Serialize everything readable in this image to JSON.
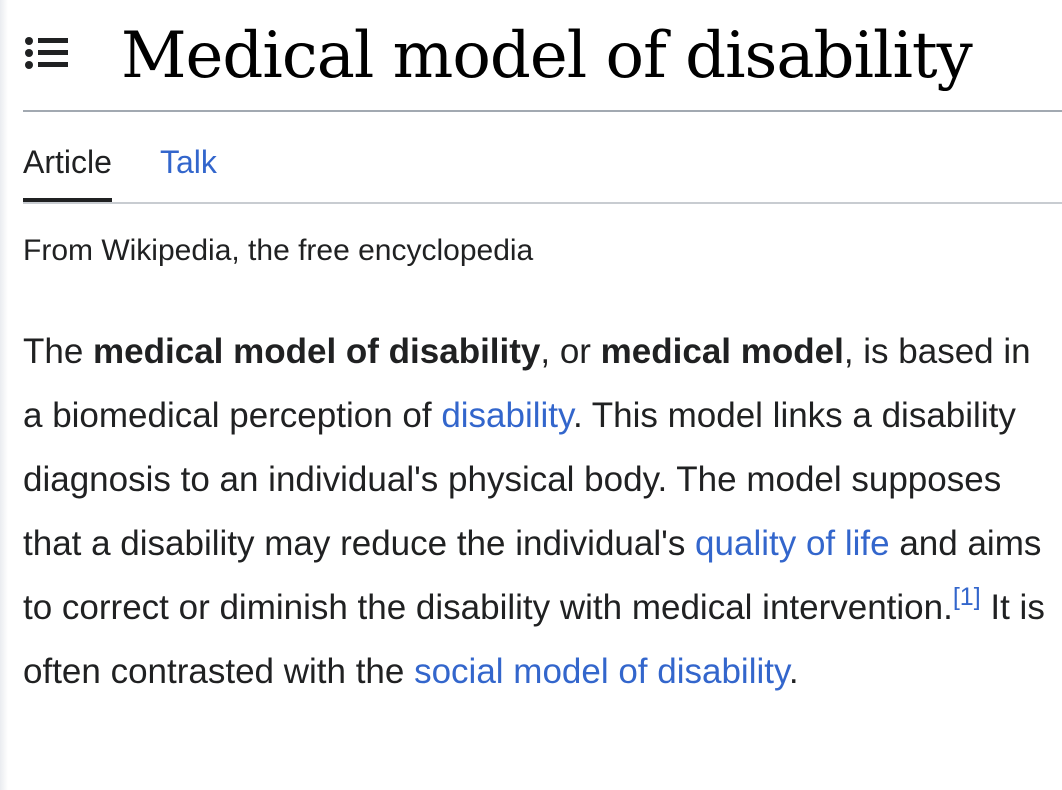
{
  "header": {
    "title": "Medical model of disability",
    "toc_icon": "table-of-contents-icon"
  },
  "tabs": [
    {
      "label": "Article",
      "selected": true
    },
    {
      "label": "Talk",
      "selected": false
    }
  ],
  "tagline": "From Wikipedia, the free encyclopedia",
  "paragraph": {
    "t1": "The ",
    "b1": "medical model of disability",
    "t2": ", or ",
    "b2": "medical model",
    "t3": ", is based in a biomedical perception of ",
    "l1": "disability",
    "t4": ". This model links a disability diagnosis to an individual's physical body. The model supposes that a disability may reduce the individual's ",
    "l2": "quality of life",
    "t5": " and aims to correct or diminish the disability with medical intervention.",
    "ref": "[1]",
    "t6": " It is often contrasted with the ",
    "l3": "social model of disability",
    "t7": "."
  },
  "colors": {
    "link": "#3366cc",
    "text": "#202122",
    "title": "#000000"
  }
}
